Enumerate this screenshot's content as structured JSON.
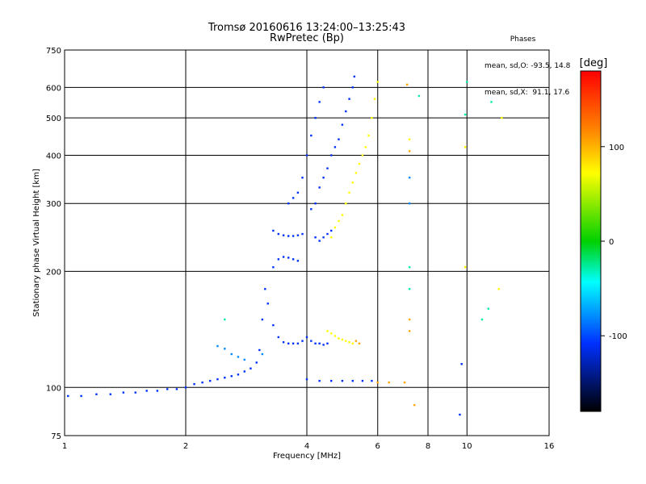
{
  "header": {
    "title_line1": "Tromsø 20160616 13:24:00–13:25:43",
    "title_line2": "RwPretec (Bp)"
  },
  "phase_box": {
    "title": "Phases",
    "o_line": "mean, sd,O: -93.5, 14.8",
    "x_line": "mean, sd,X:  91.1, 17.6"
  },
  "colorbar": {
    "unit_label": "[deg]",
    "tick_labels": [
      "100",
      "0",
      "-100"
    ],
    "tick_values": [
      100,
      0,
      -100
    ],
    "range": [
      -180,
      180
    ]
  },
  "chart_data": {
    "type": "scatter",
    "xlabel": "Frequency [MHz]",
    "ylabel": "Stationary phase Virtual Height [km]",
    "x_scale": "log",
    "y_scale": "log",
    "xlim": [
      1,
      16
    ],
    "ylim": [
      75,
      750
    ],
    "x_ticks": [
      1,
      2,
      4,
      6,
      8,
      10,
      16
    ],
    "x_tick_labels": [
      "1",
      "2",
      "4",
      "6",
      "8",
      "10",
      "16"
    ],
    "y_ticks": [
      75,
      100,
      200,
      300,
      400,
      500,
      600,
      750
    ],
    "y_tick_labels": [
      "75",
      "100",
      "200",
      "300",
      "400",
      "500",
      "600",
      "750"
    ],
    "grid": true,
    "series": [
      {
        "phase": -100,
        "points": [
          [
            1.02,
            95
          ],
          [
            1.1,
            95
          ],
          [
            1.2,
            96
          ],
          [
            1.3,
            96
          ],
          [
            1.4,
            97
          ],
          [
            1.5,
            97
          ],
          [
            1.6,
            98
          ],
          [
            1.7,
            98
          ],
          [
            1.8,
            99
          ],
          [
            1.9,
            99
          ],
          [
            2.0,
            100
          ],
          [
            2.1,
            102
          ],
          [
            2.2,
            103
          ],
          [
            2.3,
            104
          ],
          [
            2.4,
            105
          ],
          [
            2.5,
            106
          ],
          [
            2.6,
            107
          ],
          [
            2.7,
            108
          ],
          [
            2.8,
            110
          ],
          [
            2.9,
            112
          ],
          [
            3.0,
            116
          ],
          [
            3.05,
            125
          ],
          [
            3.1,
            150
          ],
          [
            3.15,
            180
          ],
          [
            3.2,
            165
          ],
          [
            3.3,
            145
          ],
          [
            3.4,
            135
          ],
          [
            3.5,
            131
          ],
          [
            3.6,
            130
          ],
          [
            3.7,
            130
          ],
          [
            3.8,
            130
          ],
          [
            3.9,
            132
          ],
          [
            4.0,
            135
          ],
          [
            4.1,
            132
          ],
          [
            4.2,
            130
          ],
          [
            4.3,
            130
          ],
          [
            4.4,
            129
          ],
          [
            4.5,
            130
          ],
          [
            3.3,
            205
          ],
          [
            3.4,
            215
          ],
          [
            3.5,
            218
          ],
          [
            3.6,
            217
          ],
          [
            3.7,
            215
          ],
          [
            3.8,
            213
          ],
          [
            3.3,
            255
          ],
          [
            3.4,
            250
          ],
          [
            3.5,
            248
          ],
          [
            3.6,
            247
          ],
          [
            3.7,
            247
          ],
          [
            3.8,
            248
          ],
          [
            3.9,
            250
          ],
          [
            4.2,
            245
          ],
          [
            4.3,
            240
          ],
          [
            4.4,
            245
          ],
          [
            4.5,
            250
          ],
          [
            4.6,
            255
          ],
          [
            3.6,
            300
          ],
          [
            3.7,
            310
          ],
          [
            3.8,
            320
          ],
          [
            3.9,
            350
          ],
          [
            4.0,
            400
          ],
          [
            4.1,
            450
          ],
          [
            4.2,
            500
          ],
          [
            4.3,
            550
          ],
          [
            4.4,
            600
          ],
          [
            4.1,
            290
          ],
          [
            4.2,
            300
          ],
          [
            4.3,
            330
          ],
          [
            4.4,
            350
          ],
          [
            4.5,
            370
          ],
          [
            4.6,
            400
          ],
          [
            4.7,
            420
          ],
          [
            4.8,
            440
          ],
          [
            4.9,
            480
          ],
          [
            5.0,
            520
          ],
          [
            5.1,
            560
          ],
          [
            5.2,
            600
          ],
          [
            5.25,
            640
          ],
          [
            4.0,
            105
          ],
          [
            4.3,
            104
          ],
          [
            4.6,
            104
          ],
          [
            4.9,
            104
          ],
          [
            5.2,
            104
          ],
          [
            5.5,
            104
          ],
          [
            5.8,
            104
          ],
          [
            9.6,
            85
          ],
          [
            9.7,
            115
          ]
        ]
      },
      {
        "phase": -70,
        "points": [
          [
            2.4,
            128
          ],
          [
            2.5,
            126
          ],
          [
            2.6,
            122
          ],
          [
            2.7,
            120
          ],
          [
            2.8,
            118
          ],
          [
            3.1,
            122
          ],
          [
            7.2,
            350
          ],
          [
            7.2,
            300
          ]
        ]
      },
      {
        "phase": -20,
        "points": [
          [
            2.5,
            150
          ],
          [
            10.9,
            150
          ],
          [
            11.3,
            160
          ],
          [
            10.0,
            620
          ],
          [
            9.9,
            510
          ],
          [
            7.6,
            570
          ],
          [
            11.5,
            550
          ],
          [
            7.2,
            180
          ],
          [
            7.2,
            205
          ]
        ]
      },
      {
        "phase": 100,
        "points": [
          [
            4.6,
            245
          ],
          [
            4.7,
            260
          ],
          [
            4.8,
            270
          ],
          [
            4.9,
            280
          ],
          [
            5.0,
            300
          ],
          [
            5.1,
            320
          ],
          [
            5.2,
            340
          ],
          [
            5.3,
            360
          ],
          [
            5.4,
            380
          ],
          [
            5.5,
            400
          ],
          [
            5.6,
            420
          ],
          [
            5.7,
            450
          ],
          [
            5.8,
            500
          ],
          [
            5.9,
            560
          ],
          [
            6.0,
            620
          ],
          [
            4.5,
            140
          ],
          [
            4.6,
            138
          ],
          [
            4.7,
            136
          ],
          [
            4.8,
            134
          ],
          [
            4.9,
            133
          ],
          [
            5.0,
            132
          ],
          [
            5.1,
            131
          ],
          [
            5.2,
            130
          ],
          [
            9.9,
            420
          ],
          [
            12.2,
            500
          ],
          [
            12.0,
            180
          ],
          [
            7.2,
            440
          ],
          [
            9.9,
            205
          ]
        ]
      },
      {
        "phase": 130,
        "points": [
          [
            5.3,
            132
          ],
          [
            5.4,
            130
          ],
          [
            6.0,
            103
          ],
          [
            6.4,
            103
          ],
          [
            7.0,
            103
          ],
          [
            7.2,
            150
          ],
          [
            7.2,
            140
          ],
          [
            7.2,
            410
          ],
          [
            7.1,
            610
          ],
          [
            7.4,
            90
          ]
        ]
      }
    ]
  }
}
